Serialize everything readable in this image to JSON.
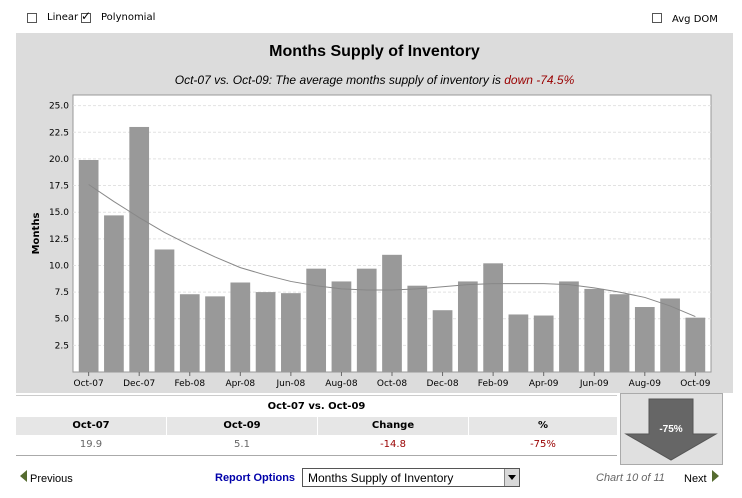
{
  "controls": {
    "linear_label": "Linear",
    "linear_checked": false,
    "polynomial_label": "Polynomial",
    "polynomial_checked": true,
    "avgdom_label": "Avg DOM",
    "avgdom_checked": false
  },
  "chart_data": {
    "type": "bar",
    "title": "Months Supply of Inventory",
    "subtitle_prefix": "Oct-07 vs. Oct-09: The average months supply of inventory is ",
    "subtitle_highlight": "down -74.5%",
    "ylabel": "Months",
    "xlabel": "",
    "ylim": [
      0,
      26
    ],
    "yticks": [
      "2.5",
      "5.0",
      "7.5",
      "10.0",
      "12.5",
      "15.0",
      "17.5",
      "20.0",
      "22.5",
      "25.0"
    ],
    "grid": true,
    "categories": [
      "Oct-07",
      "Nov-07",
      "Dec-07",
      "Jan-08",
      "Feb-08",
      "Mar-08",
      "Apr-08",
      "May-08",
      "Jun-08",
      "Jul-08",
      "Aug-08",
      "Sep-08",
      "Oct-08",
      "Nov-08",
      "Dec-08",
      "Jan-09",
      "Feb-09",
      "Mar-09",
      "Apr-09",
      "May-09",
      "Jun-09",
      "Jul-09",
      "Aug-09",
      "Sep-09",
      "Oct-09"
    ],
    "xtick_labels": [
      "Oct-07",
      "Dec-07",
      "Feb-08",
      "Apr-08",
      "Jun-08",
      "Aug-08",
      "Oct-08",
      "Dec-08",
      "Feb-09",
      "Apr-09",
      "Jun-09",
      "Aug-09",
      "Oct-09"
    ],
    "values": [
      19.9,
      14.7,
      23.0,
      11.5,
      7.3,
      7.1,
      8.4,
      7.5,
      7.4,
      9.7,
      8.5,
      9.7,
      11.0,
      8.1,
      5.8,
      8.5,
      10.2,
      5.4,
      5.3,
      8.5,
      7.8,
      7.3,
      6.1,
      6.9,
      5.1
    ],
    "trend": [
      17.6,
      16.0,
      14.5,
      13.1,
      11.9,
      10.8,
      9.8,
      9.1,
      8.5,
      8.1,
      7.8,
      7.7,
      7.7,
      7.8,
      8.0,
      8.2,
      8.3,
      8.3,
      8.3,
      8.2,
      7.9,
      7.5,
      7.0,
      6.2,
      5.2
    ],
    "bar_color": "#999999",
    "trend_color": "#888888"
  },
  "summary": {
    "heading": "Oct-07 vs. Oct-09",
    "columns": [
      "Oct-07",
      "Oct-09",
      "Change",
      "%"
    ],
    "values": [
      "19.9",
      "5.1",
      "-14.8",
      "-75%"
    ],
    "badge": "-75%",
    "badge_color": "#666666"
  },
  "footer": {
    "previous": "Previous",
    "report_options": "Report Options",
    "selected_report": "Months Supply of Inventory",
    "chart_number": "Chart 10 of 11",
    "next": "Next",
    "nav_color": "#556b2f"
  }
}
